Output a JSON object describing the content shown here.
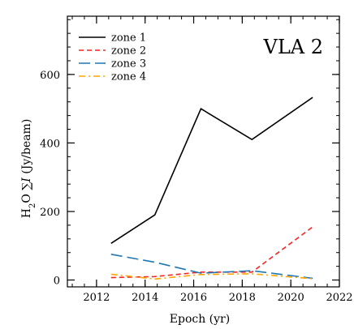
{
  "chart_data": {
    "type": "line",
    "panel_label": "VLA 2",
    "xlabel": "Epoch (yr)",
    "ylabel": {
      "prefix": "H",
      "sub": "2",
      "rest": "O ",
      "sum": "∑",
      "var": "I",
      "unit": " (Jy/beam)"
    },
    "xlim": [
      2010.8,
      2022.0
    ],
    "ylim": [
      -20,
      770
    ],
    "x_ticks": [
      2012,
      2014,
      2016,
      2018,
      2020,
      2022
    ],
    "y_ticks": [
      0,
      200,
      400,
      600
    ],
    "x_minor_step": 0.5,
    "y_minor_step": 40,
    "grid": false,
    "legend_position": "top-left",
    "series": [
      {
        "name": "zone 1",
        "color": "#000000",
        "dash": "solid",
        "x": [
          2012.6,
          2014.4,
          2016.3,
          2018.4,
          2020.9
        ],
        "y": [
          107,
          190,
          500,
          410,
          533
        ]
      },
      {
        "name": "zone 2",
        "color": "#ff2020",
        "dash": "dash",
        "x": [
          2012.6,
          2014.4,
          2016.3,
          2018.4,
          2020.9
        ],
        "y": [
          7,
          10,
          23,
          23,
          155
        ]
      },
      {
        "name": "zone 3",
        "color": "#1f77b4",
        "dash": "longdash",
        "x": [
          2012.6,
          2014.4,
          2016.3,
          2018.4,
          2020.9
        ],
        "y": [
          75,
          52,
          20,
          27,
          5
        ]
      },
      {
        "name": "zone 4",
        "color": "#ffa500",
        "dash": "dashdot",
        "x": [
          2012.6,
          2014.4,
          2016.3,
          2018.4,
          2020.9
        ],
        "y": [
          17,
          3,
          16,
          18,
          4
        ]
      }
    ]
  }
}
